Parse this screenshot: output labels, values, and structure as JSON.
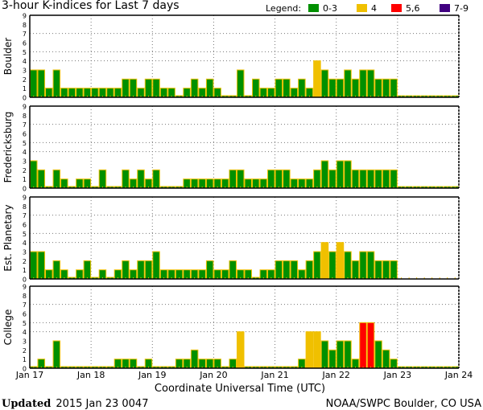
{
  "chart_data": {
    "type": "bar",
    "title": "3-hour K-indices for Last 7 days",
    "xlabel": "Coordinate Universal Time (UTC)",
    "ylim": [
      0,
      9
    ],
    "yticks": [
      "0",
      "1",
      "2",
      "3",
      "4",
      "5",
      "6",
      "7",
      "8",
      "9"
    ],
    "xticks": [
      "Jan 17",
      "Jan 18",
      "Jan 19",
      "Jan 20",
      "Jan 21",
      "Jan 22",
      "Jan 23",
      "Jan 24"
    ],
    "bars_per_day": 8,
    "grid_levels": [
      4,
      5,
      7
    ],
    "legend": {
      "label": "Legend:",
      "entries": [
        {
          "label": "0-3",
          "color": "#009000"
        },
        {
          "label": "4",
          "color": "#f0c000"
        },
        {
          "label": "5,6",
          "color": "#ff0000"
        },
        {
          "label": "7-9",
          "color": "#400080"
        }
      ],
      "placement": "top-right"
    },
    "bar_outline_color": "#f0c000",
    "series": [
      {
        "name": "Boulder",
        "missing_baseline": true,
        "values": [
          3,
          3,
          1,
          3,
          1,
          1,
          1,
          1,
          1,
          1,
          1,
          1,
          2,
          2,
          1,
          2,
          2,
          1,
          1,
          0,
          1,
          2,
          1,
          2,
          1,
          0,
          0,
          3,
          0,
          2,
          1,
          1,
          2,
          2,
          1,
          2,
          1,
          4,
          3,
          2,
          2,
          3,
          2,
          3,
          3,
          2,
          2,
          2,
          null,
          null,
          null,
          null,
          null,
          null,
          null,
          null
        ]
      },
      {
        "name": "Fredericksburg",
        "missing_baseline": true,
        "values": [
          3,
          2,
          0,
          2,
          1,
          0,
          1,
          1,
          0,
          2,
          0,
          0,
          2,
          1,
          2,
          1,
          2,
          0,
          0,
          0,
          1,
          1,
          1,
          1,
          1,
          1,
          2,
          2,
          1,
          1,
          1,
          2,
          2,
          2,
          1,
          1,
          1,
          2,
          3,
          2,
          3,
          3,
          2,
          2,
          2,
          2,
          2,
          2,
          null,
          null,
          null,
          null,
          null,
          null,
          null,
          null
        ]
      },
      {
        "name": "Est. Planetary",
        "missing_baseline": false,
        "values": [
          3,
          3,
          1,
          2,
          1,
          0,
          1,
          2,
          0,
          1,
          0,
          1,
          2,
          1,
          2,
          2,
          3,
          1,
          1,
          1,
          1,
          1,
          1,
          2,
          1,
          1,
          2,
          1,
          1,
          0,
          1,
          1,
          2,
          2,
          2,
          1,
          2,
          3,
          4,
          3,
          4,
          3,
          2,
          3,
          3,
          2,
          2,
          2,
          null,
          null,
          null,
          null,
          null,
          null,
          null,
          null
        ]
      },
      {
        "name": "College",
        "missing_baseline": true,
        "values": [
          0,
          1,
          0,
          3,
          0,
          0,
          0,
          0,
          0,
          0,
          0,
          1,
          1,
          1,
          0,
          1,
          0,
          0,
          0,
          1,
          1,
          2,
          1,
          1,
          1,
          0,
          1,
          4,
          0,
          0,
          0,
          0,
          0,
          0,
          0,
          1,
          4,
          4,
          3,
          2,
          3,
          3,
          1,
          5,
          5,
          3,
          2,
          1,
          null,
          null,
          null,
          null,
          null,
          null,
          null,
          null
        ]
      }
    ]
  },
  "footer": {
    "updated_label": "Updated",
    "updated_value": "2015 Jan 23 0047",
    "source": "NOAA/SWPC Boulder, CO USA"
  }
}
